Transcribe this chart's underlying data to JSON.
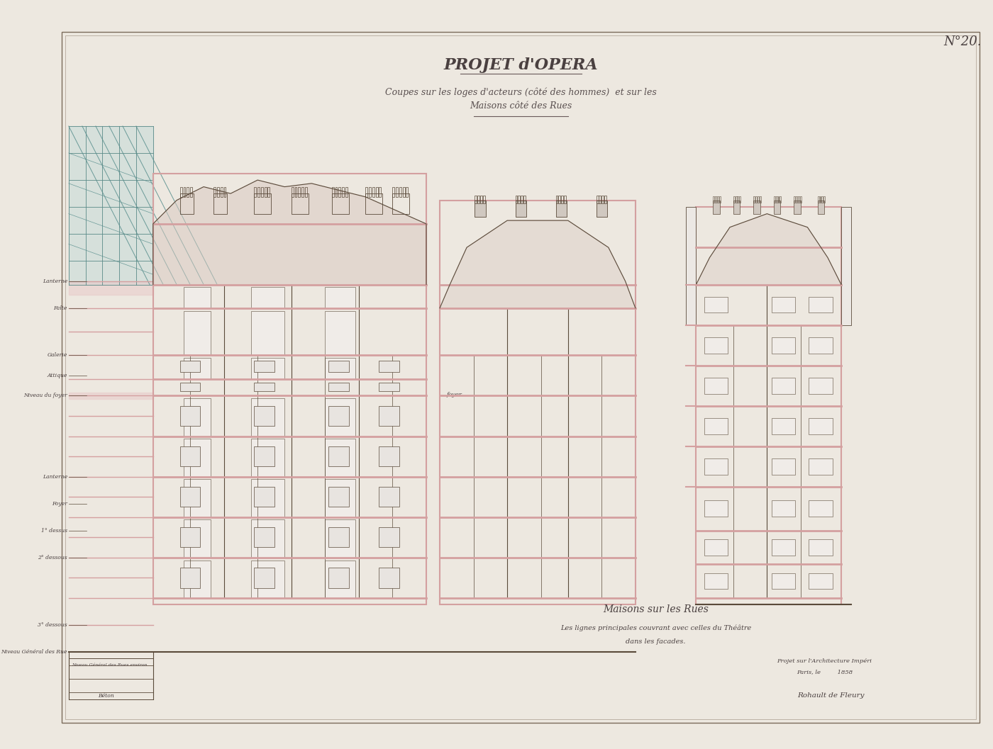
{
  "bg_color": "#e8e0d8",
  "paper_color": "#ede8e0",
  "line_color": "#5a4a3a",
  "pink_color": "#d4a0a0",
  "pink_fill": "#e8c8c8",
  "blue_green_color": "#7ab5b0",
  "title": "PROJET d'OPERA",
  "subtitle_line1": "Coupes sur les loges d'acteurs (côté des hommes)  et sur les",
  "subtitle_line2": "Maisons côté des Rues",
  "number_label": "N°20.",
  "caption_line1": "Maisons sur les Rues",
  "caption_line2": "Les lignes principales couvrant avec celles du Théâtre",
  "caption_line3": "dans les facades.",
  "credit_line1": "Projet sur l'Architecture Impéri",
  "credit_line2": "Paris, le         1858",
  "signature": "Rohault de Fleury",
  "figsize": [
    14.0,
    10.57
  ],
  "dpi": 100
}
